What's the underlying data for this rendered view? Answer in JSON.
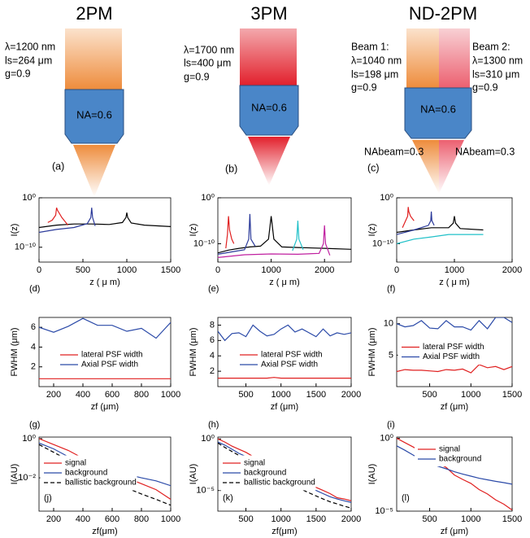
{
  "diagrams": [
    {
      "title": "2PM",
      "lines": [
        "λ=1200 nm",
        "ls=264 μm",
        "g=0.9"
      ],
      "objective": "NA=0.6",
      "panel": "(a)"
    },
    {
      "title": "3PM",
      "lines": [
        "λ=1700 nm",
        "ls=400 μm",
        "g=0.9"
      ],
      "objective": "NA=0.6",
      "panel": "(b)"
    },
    {
      "title": "ND-2PM",
      "beam1": [
        "Beam 1:",
        "λ=1040 nm",
        "ls=198 μm",
        "g=0.9"
      ],
      "beam2": [
        "Beam 2:",
        "λ=1300 nm",
        "ls=310 μm",
        "g=0.9"
      ],
      "objective": "NA=0.6",
      "na_left": "NAbeam=0.3",
      "na_right": "NAbeam=0.3",
      "panel": "(c)"
    }
  ],
  "chart_data": [
    {
      "type": "line",
      "panel": "(d)",
      "xlabel": "z ( μ m)",
      "ylabel": "I(z)",
      "yscale": "log",
      "xlim": [
        0,
        1500
      ],
      "xticks": [
        0,
        500,
        1000,
        1500
      ],
      "ylim": [
        1e-13,
        1
      ],
      "yticks": [
        {
          "value": 1,
          "label": "10⁰"
        },
        {
          "value": 1e-10,
          "label": "10⁻¹⁰"
        }
      ],
      "series": [
        {
          "color": "#000000",
          "x": [
            0,
            200,
            400,
            600,
            800,
            950,
            990,
            1000,
            1010,
            1050,
            1200,
            1500
          ],
          "values": [
            1e-06,
            3e-06,
            5e-06,
            5e-06,
            4e-06,
            1e-05,
            0.0001,
            0.001,
            0.0001,
            8e-06,
            3e-06,
            1.5e-06
          ]
        },
        {
          "color": "#2b3a9a",
          "x": [
            0,
            200,
            400,
            550,
            590,
            600,
            610,
            640
          ],
          "values": [
            1e-07,
            4e-07,
            1e-06,
            6e-06,
            0.0001,
            0.01,
            0.0001,
            2e-06
          ]
        },
        {
          "color": "#e02020",
          "x": [
            100,
            150,
            190,
            200,
            210,
            260,
            330
          ],
          "values": [
            1e-05,
            3e-05,
            0.0003,
            0.01,
            0.003,
            0.0001,
            3e-06
          ]
        }
      ]
    },
    {
      "type": "line",
      "panel": "(e)",
      "xlabel": "z ( μ m)",
      "ylabel": "I(z)",
      "yscale": "log",
      "xlim": [
        0,
        2500
      ],
      "xticks": [
        0,
        1000,
        2000
      ],
      "ylim": [
        1e-14,
        1
      ],
      "yticks": [
        {
          "value": 1,
          "label": "10⁰"
        },
        {
          "value": 1e-10,
          "label": "10⁻¹⁰"
        }
      ],
      "series": [
        {
          "color": "#000000",
          "x": [
            0,
            200,
            400,
            600,
            800,
            950,
            1000,
            1050,
            1200,
            1500,
            2000,
            2500
          ],
          "values": [
            1e-12,
            4e-12,
            1e-11,
            2e-11,
            3e-11,
            1e-09,
            0.0001,
            1e-09,
            2e-11,
            1.5e-11,
            1e-11,
            6e-12
          ]
        },
        {
          "color": "#e02020",
          "x": [
            150,
            180,
            200,
            220,
            260,
            300
          ],
          "values": [
            1e-11,
            1e-08,
            0.0001,
            1e-07,
            1e-09,
            1e-10
          ]
        },
        {
          "color": "#2b3a9a",
          "x": [
            0,
            300,
            500,
            580,
            600,
            620,
            700
          ],
          "values": [
            5e-13,
            2e-12,
            5e-12,
            1e-09,
            0.0003,
            1e-09,
            3e-11
          ]
        },
        {
          "color": "#20c0c8",
          "x": [
            1400,
            1480,
            1500,
            1520,
            1600
          ],
          "values": [
            3e-12,
            1e-09,
            1e-05,
            1e-09,
            5e-12
          ]
        },
        {
          "color": "#c020a0",
          "x": [
            0,
            500,
            1000,
            1500,
            1900,
            1980,
            2000,
            2020,
            2100
          ],
          "values": [
            1e-13,
            4e-13,
            6e-13,
            5e-13,
            8e-13,
            1e-10,
            1e-06,
            1e-10,
            3e-13
          ]
        }
      ]
    },
    {
      "type": "line",
      "panel": "(f)",
      "xlabel": "z ( μ m)",
      "ylabel": "I(z)",
      "yscale": "log",
      "xlim": [
        0,
        2000
      ],
      "xticks": [
        0,
        1000,
        2000
      ],
      "ylim": [
        1e-14,
        1
      ],
      "yticks": [
        {
          "value": 1,
          "label": "10⁰"
        },
        {
          "value": 1e-10,
          "label": "10⁻¹⁰"
        }
      ],
      "series": [
        {
          "color": "#000000",
          "x": [
            0,
            300,
            600,
            900,
            980,
            1000,
            1020,
            1100,
            1500
          ],
          "values": [
            3e-08,
            1e-07,
            3e-07,
            3e-07,
            3e-06,
            0.0001,
            3e-06,
            2e-07,
            1e-07
          ]
        },
        {
          "color": "#e02020",
          "x": [
            100,
            190,
            200,
            210,
            240,
            300
          ],
          "values": [
            3e-07,
            0.0001,
            0.01,
            0.001,
            0.0001,
            1e-05
          ]
        },
        {
          "color": "#2b3a9a",
          "x": [
            0,
            300,
            550,
            590,
            600,
            610,
            650
          ],
          "values": [
            1e-08,
            1e-07,
            1e-06,
            1e-05,
            0.001,
            1e-05,
            1e-06
          ]
        },
        {
          "color": "#20c0c8",
          "x": [
            0,
            300,
            600,
            900,
            1200,
            1500
          ],
          "values": [
            1e-10,
            1e-09,
            3e-09,
            1e-08,
            1e-08,
            1e-08
          ]
        }
      ]
    },
    {
      "type": "line",
      "panel": "(g)",
      "xlabel": "zf (μm)",
      "ylabel": "FWHM (μm)",
      "legend": "lower center",
      "xlim": [
        100,
        1000
      ],
      "xticks": [
        200,
        400,
        600,
        800,
        1000
      ],
      "ylim": [
        0,
        7
      ],
      "yticks": [
        2,
        4,
        6
      ],
      "series": [
        {
          "name": "lateral PSF width",
          "color": "#e02020",
          "x": [
            100,
            200,
            300,
            400,
            500,
            600,
            700,
            800,
            900,
            1000
          ],
          "values": [
            0.8,
            0.8,
            0.8,
            0.8,
            0.8,
            0.8,
            0.8,
            0.8,
            0.8,
            0.8
          ]
        },
        {
          "name": "Axial PSF width",
          "color": "#2b4aa8",
          "x": [
            100,
            200,
            300,
            400,
            500,
            600,
            700,
            800,
            900,
            1000
          ],
          "values": [
            6,
            5.5,
            6.1,
            6.9,
            6.2,
            6.2,
            5.6,
            5.9,
            4.9,
            6.5
          ]
        }
      ]
    },
    {
      "type": "line",
      "panel": "(h)",
      "xlabel": "zf (μm)",
      "ylabel": "FWHM (μm)",
      "legend": "lower center",
      "xlim": [
        100,
        2000
      ],
      "xticks": [
        500,
        1000,
        1500,
        2000
      ],
      "ylim": [
        0,
        9
      ],
      "yticks": [
        2,
        4,
        6,
        8
      ],
      "series": [
        {
          "name": "lateral PSF width",
          "color": "#e02020",
          "x": [
            100,
            200,
            300,
            400,
            500,
            600,
            700,
            800,
            900,
            1000,
            1100,
            1200,
            1300,
            1400,
            1500,
            1600,
            1700,
            1800,
            1900,
            2000
          ],
          "values": [
            1.1,
            1.1,
            1.1,
            1.1,
            1.1,
            1.1,
            1.1,
            1.1,
            1.2,
            1.1,
            1.1,
            1.1,
            1.1,
            1.1,
            1.1,
            1.1,
            1.1,
            1.1,
            1.1,
            1.1
          ]
        },
        {
          "name": "Axial PSF width",
          "color": "#2b4aa8",
          "x": [
            100,
            200,
            300,
            400,
            500,
            600,
            700,
            800,
            900,
            1000,
            1100,
            1200,
            1300,
            1400,
            1500,
            1600,
            1700,
            1800,
            1900,
            2000
          ],
          "values": [
            7.2,
            6,
            6.9,
            7,
            6.5,
            8,
            7.2,
            6.6,
            6.8,
            7.5,
            8,
            7.1,
            7.5,
            7,
            6.5,
            7.5,
            6.6,
            7,
            6.8,
            7
          ]
        }
      ]
    },
    {
      "type": "line",
      "panel": "(i)",
      "xlabel": "zf (μm)",
      "ylabel": "FWHM (μm)",
      "legend": "center",
      "xlim": [
        100,
        1500
      ],
      "xticks": [
        500,
        1000,
        1500
      ],
      "ylim": [
        0,
        11
      ],
      "yticks": [
        5,
        10
      ],
      "series": [
        {
          "name": "lateral PSF width",
          "color": "#e02020",
          "x": [
            100,
            200,
            300,
            400,
            500,
            600,
            700,
            800,
            900,
            1000,
            1100,
            1200,
            1300,
            1400,
            1500
          ],
          "values": [
            2.4,
            2.7,
            2.6,
            2.6,
            2.5,
            2.4,
            2.7,
            2.6,
            2.8,
            2.2,
            3.5,
            3,
            3.2,
            2.7,
            3.2
          ]
        },
        {
          "name": "Axial PSF width",
          "color": "#2b4aa8",
          "x": [
            100,
            200,
            300,
            400,
            500,
            600,
            700,
            800,
            900,
            1000,
            1100,
            1200,
            1300,
            1400,
            1500
          ],
          "values": [
            10,
            9.5,
            9.7,
            10.5,
            9.3,
            9.2,
            10.5,
            9.5,
            9.5,
            9,
            10.5,
            9.2,
            11,
            11,
            10.2
          ]
        }
      ]
    },
    {
      "type": "line",
      "panel": "(j)",
      "xlabel": "zf(μm)",
      "ylabel": "I(AU)",
      "yscale": "log",
      "legend": "lower left",
      "xlim": [
        100,
        1000
      ],
      "xticks": [
        200,
        400,
        600,
        800,
        1000
      ],
      "ylim": [
        0.0002,
        1.2
      ],
      "yticks": [
        {
          "value": 1,
          "label": "10⁰"
        },
        {
          "value": 0.01,
          "label": "10⁻²"
        }
      ],
      "series": [
        {
          "name": "signal",
          "color": "#e02020",
          "x": [
            100,
            200,
            300,
            400,
            500,
            600,
            700,
            800,
            900,
            1000
          ],
          "values": [
            1,
            0.5,
            0.25,
            0.1,
            0.05,
            0.02,
            0.01,
            0.005,
            0.0025,
            0.0008
          ]
        },
        {
          "name": "background",
          "color": "#2b4aa8",
          "x": [
            100,
            200,
            300,
            400,
            500,
            600,
            700,
            800,
            900,
            1000
          ],
          "values": [
            0.6,
            0.3,
            0.12,
            0.07,
            0.04,
            0.025,
            0.015,
            0.01,
            0.007,
            0.004
          ]
        },
        {
          "name": "ballistic background",
          "color": "#000000",
          "dash": true,
          "x": [
            100,
            200,
            300,
            400,
            500,
            600,
            700,
            800,
            900,
            1000
          ],
          "values": [
            0.5,
            0.2,
            0.08,
            0.035,
            0.015,
            0.007,
            0.003,
            0.0015,
            0.0008,
            0.0004
          ]
        }
      ]
    },
    {
      "type": "line",
      "panel": "(k)",
      "xlabel": "zf(μm)",
      "ylabel": "I(AU)",
      "yscale": "log",
      "legend": "lower left",
      "xlim": [
        100,
        2000
      ],
      "xticks": [
        500,
        1000,
        1500,
        2000
      ],
      "ylim": [
        1e-07,
        1.5
      ],
      "yticks": [
        {
          "value": 1,
          "label": "10⁰"
        },
        {
          "value": 1e-05,
          "label": "10⁻⁵"
        }
      ],
      "series": [
        {
          "name": "signal",
          "color": "#e02020",
          "x": [
            100,
            200,
            300,
            400,
            500,
            600,
            700,
            800,
            900,
            1000,
            1100,
            1200,
            1300,
            1400,
            1500,
            1600,
            1700,
            1800,
            1900,
            2000
          ],
          "values": [
            1,
            0.5,
            0.2,
            0.1,
            0.05,
            0.02,
            0.01,
            0.005,
            0.002,
            0.001,
            0.0005,
            0.0002,
            0.0001,
            5e-05,
            2e-05,
            1e-05,
            5e-06,
            2e-06,
            1.5e-06,
            1e-06
          ]
        },
        {
          "name": "background",
          "color": "#2b4aa8",
          "x": [
            100,
            200,
            300,
            400,
            500,
            600,
            700,
            800,
            900,
            1000,
            1100,
            1200,
            1300,
            1400,
            1500,
            1600,
            1700,
            1800,
            1900,
            2000
          ],
          "values": [
            0.5,
            0.25,
            0.1,
            0.04,
            0.02,
            0.008,
            0.004,
            0.002,
            0.0008,
            0.0004,
            0.0002,
            9e-05,
            4e-05,
            2e-05,
            1e-05,
            5e-06,
            2.5e-06,
            1.5e-06,
            1e-06,
            7e-07
          ]
        },
        {
          "name": "ballistic background",
          "color": "#000000",
          "dash": true,
          "x": [
            100,
            200,
            300,
            400,
            500,
            600,
            700,
            800,
            900,
            1000,
            1100,
            1200,
            1300,
            1400,
            1500,
            1600,
            1700,
            1800,
            1900,
            2000
          ],
          "values": [
            0.4,
            0.15,
            0.06,
            0.025,
            0.01,
            0.004,
            0.002,
            0.0008,
            0.0003,
            0.00015,
            6e-05,
            3e-05,
            1.2e-05,
            6e-06,
            3e-06,
            1.5e-06,
            8e-07,
            5e-07,
            3e-07,
            2e-07
          ]
        }
      ]
    },
    {
      "type": "line",
      "panel": "(l)",
      "xlabel": "zf (μm)",
      "ylabel": "I(AU)",
      "yscale": "log",
      "legend": "upper right",
      "xlim": [
        100,
        1500
      ],
      "xticks": [
        500,
        1000,
        1500
      ],
      "ylim": [
        1e-05,
        1.2
      ],
      "yticks": [
        {
          "value": 1,
          "label": "10⁰"
        },
        {
          "value": 1e-05,
          "label": "10⁻⁵"
        }
      ],
      "series": [
        {
          "name": "signal",
          "color": "#e02020",
          "x": [
            100,
            200,
            300,
            400,
            500,
            600,
            700,
            800,
            900,
            1000,
            1100,
            1200,
            1300,
            1400,
            1500
          ],
          "values": [
            1,
            0.5,
            0.25,
            0.12,
            0.05,
            0.02,
            0.01,
            0.003,
            0.0015,
            0.0008,
            0.0003,
            0.00015,
            6e-05,
            3e-05,
            1.2e-05
          ]
        },
        {
          "name": "background",
          "color": "#2b4aa8",
          "x": [
            100,
            200,
            300,
            400,
            500,
            600,
            700,
            800,
            900,
            1000,
            1100,
            1200,
            1300,
            1400,
            1500
          ],
          "values": [
            0.3,
            0.15,
            0.07,
            0.035,
            0.02,
            0.012,
            0.008,
            0.005,
            0.0035,
            0.0025,
            0.0018,
            0.0014,
            0.0011,
            0.0009,
            0.0007
          ]
        }
      ]
    }
  ]
}
